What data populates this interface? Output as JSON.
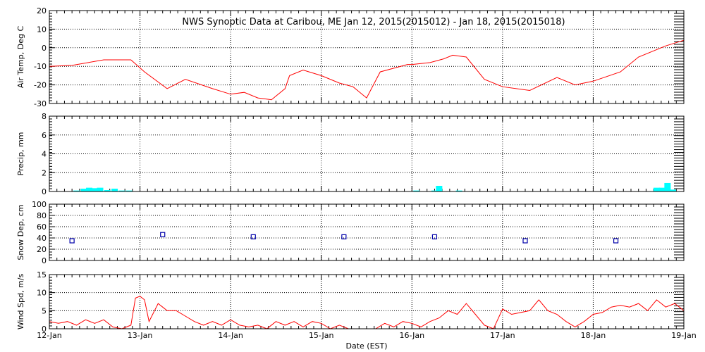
{
  "chart_data": {
    "title": "NWS Synoptic Data at Caribou, ME   Jan 12, 2015(2015012) - Jan 18, 2015(2015018)",
    "xlabel": "Date (EST)",
    "x_range_days": [
      0,
      7
    ],
    "x_tick_labels": [
      "12-Jan",
      "13-Jan",
      "14-Jan",
      "15-Jan",
      "16-Jan",
      "17-Jan",
      "18-Jan",
      "19-Jan"
    ],
    "panels": [
      {
        "id": "air-temp",
        "type": "line",
        "ylabel": "Air Temp, Deg C",
        "ylim": [
          -30,
          20
        ],
        "yticks": [
          20,
          10,
          0,
          -10,
          -20,
          -30
        ],
        "color": "#ff0000",
        "x": [
          0,
          0.25,
          0.6,
          0.9,
          1.05,
          1.3,
          1.5,
          1.8,
          2.0,
          2.15,
          2.3,
          2.45,
          2.6,
          2.65,
          2.8,
          3.0,
          3.2,
          3.35,
          3.5,
          3.65,
          3.95,
          4.0,
          4.2,
          4.35,
          4.45,
          4.6,
          4.8,
          5.0,
          5.3,
          5.6,
          5.8,
          6.0,
          6.3,
          6.5,
          6.8,
          7.0
        ],
        "y": [
          -10,
          -9.5,
          -6.5,
          -6.5,
          -13,
          -22,
          -17,
          -22,
          -25,
          -24,
          -27,
          -28,
          -22,
          -15,
          -12,
          -15,
          -19,
          -21,
          -27,
          -13,
          -9,
          -9,
          -8,
          -6,
          -4,
          -5,
          -17,
          -21,
          -23,
          -16,
          -20,
          -18,
          -13,
          -5,
          1,
          4
        ]
      },
      {
        "id": "precip",
        "type": "bar",
        "ylabel": "Precip, mm",
        "ylim": [
          0,
          8
        ],
        "yticks": [
          8,
          6,
          4,
          2,
          0
        ],
        "color": "#00ffff",
        "x": [
          0.3,
          0.38,
          0.44,
          0.5,
          0.56,
          0.64,
          0.72,
          0.8,
          0.88,
          4.05,
          4.25,
          4.3,
          4.52,
          6.7,
          6.76,
          6.82,
          6.88
        ],
        "values": [
          0.1,
          0.3,
          0.4,
          0.35,
          0.4,
          0.15,
          0.3,
          0.1,
          0.1,
          0.1,
          0.1,
          0.6,
          0.1,
          0.4,
          0.4,
          0.9,
          0.2
        ]
      },
      {
        "id": "snow-depth",
        "type": "scatter",
        "ylabel": "Snow Dep, cm",
        "ylim": [
          0,
          100
        ],
        "yticks": [
          100,
          80,
          60,
          40,
          20,
          0
        ],
        "color": "#0000aa",
        "x": [
          0.25,
          1.25,
          2.25,
          3.25,
          4.25,
          5.25,
          6.25
        ],
        "y": [
          35,
          46,
          42,
          42,
          42,
          35,
          35
        ]
      },
      {
        "id": "wind-speed",
        "type": "line",
        "ylabel": "Wind Spd, m/s",
        "ylim": [
          0,
          15
        ],
        "yticks": [
          15,
          10,
          5,
          0
        ],
        "color": "#ff0000",
        "x": [
          0,
          0.1,
          0.2,
          0.3,
          0.4,
          0.5,
          0.6,
          0.7,
          0.8,
          0.9,
          0.95,
          1.0,
          1.05,
          1.1,
          1.2,
          1.25,
          1.3,
          1.4,
          1.5,
          1.6,
          1.7,
          1.8,
          1.9,
          2.0,
          2.1,
          2.2,
          2.3,
          2.4,
          2.5,
          2.6,
          2.7,
          2.8,
          2.9,
          3.0,
          3.1,
          3.2,
          3.3,
          3.4,
          3.5,
          3.6,
          3.7,
          3.8,
          3.9,
          4.0,
          4.1,
          4.2,
          4.3,
          4.4,
          4.5,
          4.6,
          4.7,
          4.8,
          4.9,
          5.0,
          5.1,
          5.2,
          5.3,
          5.4,
          5.5,
          5.6,
          5.7,
          5.8,
          5.9,
          6.0,
          6.1,
          6.2,
          6.3,
          6.4,
          6.5,
          6.6,
          6.7,
          6.8,
          6.9,
          7.0
        ],
        "y": [
          2,
          1.5,
          2,
          1,
          2.5,
          1.5,
          2.5,
          0.5,
          0,
          1,
          8.5,
          9,
          8,
          2,
          7,
          6,
          5,
          5,
          3.5,
          2,
          1,
          2,
          1,
          2.5,
          1,
          0.5,
          1,
          0,
          2,
          1,
          2,
          0.5,
          2,
          1.5,
          0,
          1,
          0,
          0,
          0,
          0,
          1.5,
          0.5,
          2,
          1.5,
          0.5,
          2,
          3,
          5,
          4,
          7,
          4,
          1,
          0,
          5.5,
          4,
          4.5,
          5,
          8,
          5,
          4,
          2,
          0.5,
          2,
          4,
          4.5,
          6,
          6.5,
          6,
          7,
          5,
          8,
          6,
          7,
          5
        ]
      }
    ]
  }
}
